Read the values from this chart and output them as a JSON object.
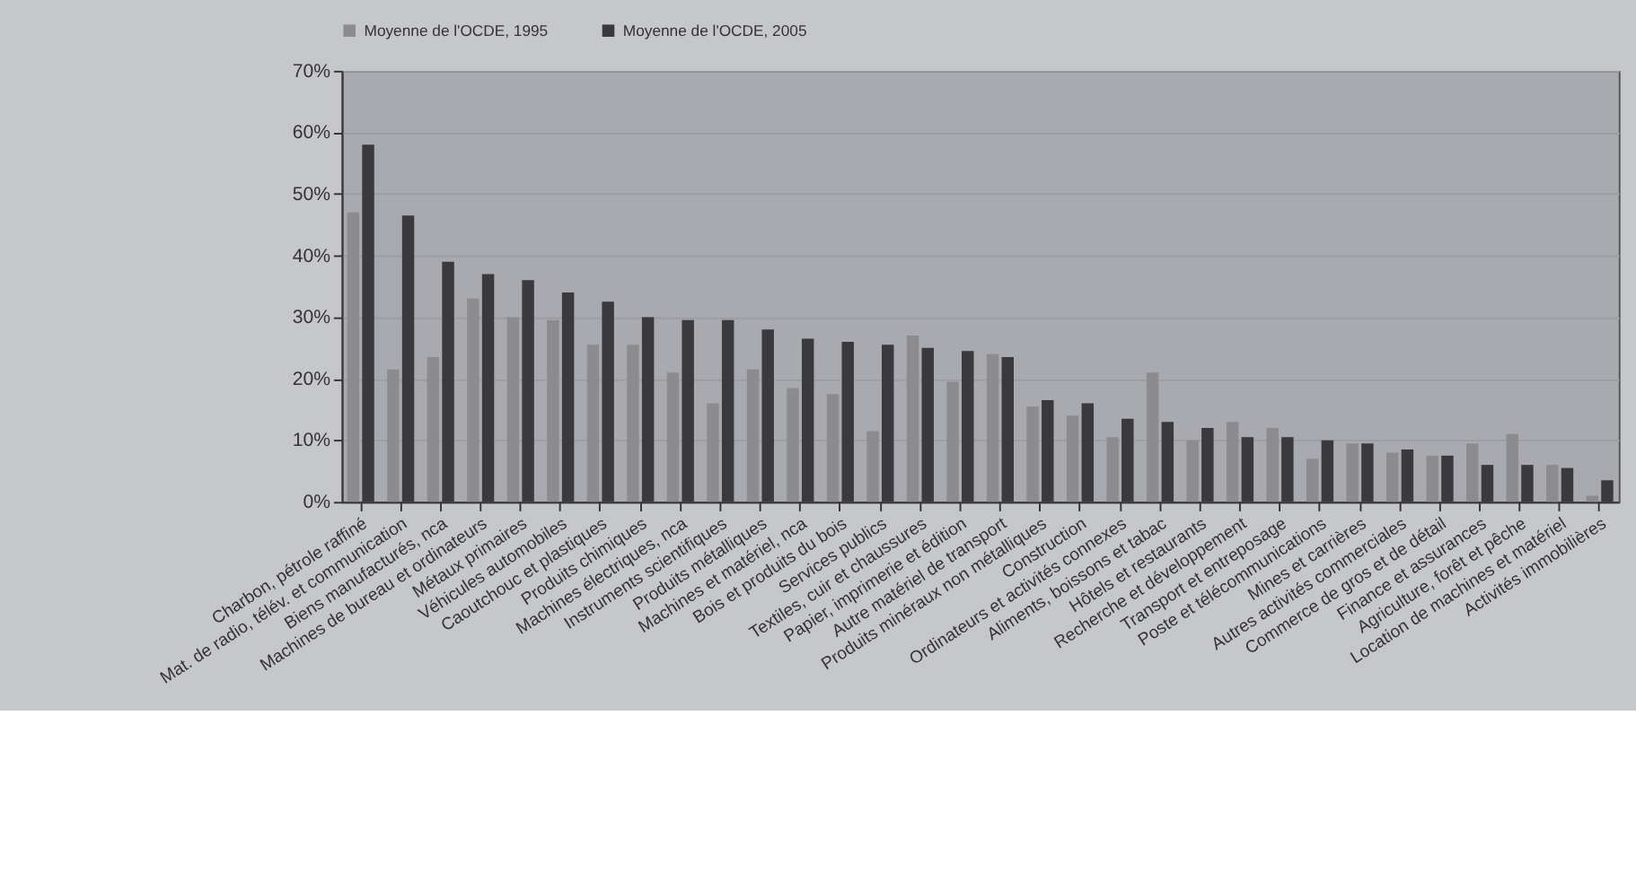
{
  "chart_data": {
    "type": "bar",
    "categories": [
      "Charbon, pétrole raffiné",
      "Mat. de radio, télév. et communication",
      "Biens  manufacturés, nca",
      "Machines de bureau et ordinateurs",
      "Métaux  primaires",
      "Véhicules automobiles",
      "Caoutchouc et plastiques",
      "Produits chimiques",
      "Machines électriques, nca",
      "Instruments scientifiques",
      "Produits métalliques",
      "Machines et matériel, nca",
      "Bois et produits du bois",
      "Services  publics",
      "Textiles, cuir et chaussures",
      "Papier, imprimerie et  édition",
      "Autre matériel de transport",
      "Produits minéraux non métalliques",
      "Construction",
      "Ordinateurs et activités connexes",
      "Aliments, boissons et tabac",
      "Hôtels et restaurants",
      "Recherche et développement",
      "Transport et entreposage",
      "Poste et télécommunications",
      "Mines et carrières",
      "Autres activités commerciales",
      "Commerce de gros et de détail",
      "Finance et assurances",
      "Agriculture, forêt et pêche",
      "Location  de machines et matériel",
      "Activités immobilières"
    ],
    "series": [
      {
        "name": "Moyenne de l'OCDE, 1995",
        "color": "#8c8c8e",
        "values": [
          47,
          21.5,
          23.5,
          33,
          30,
          29.5,
          25.5,
          25.5,
          21,
          16,
          21.5,
          18.5,
          17.5,
          11.5,
          27,
          19.5,
          24,
          15.5,
          14,
          10.5,
          21,
          10,
          13,
          12,
          7,
          9.5,
          8,
          7.5,
          9.5,
          11,
          6,
          1
        ]
      },
      {
        "name": "Moyenne de l'OCDE, 2005",
        "color": "#3a3a3c",
        "values": [
          58,
          46.5,
          39,
          37,
          36,
          34,
          32.5,
          30,
          29.5,
          29.5,
          28,
          26.5,
          26,
          25.5,
          25,
          24.5,
          23.5,
          16.5,
          16,
          13.5,
          13,
          12,
          10.5,
          10.5,
          10,
          9.5,
          8.5,
          7.5,
          6,
          6,
          5.5,
          3.5
        ]
      }
    ],
    "ylim": [
      0,
      70
    ],
    "yticks": [
      {
        "value": 0,
        "label": "0%"
      },
      {
        "value": 10,
        "label": "10%"
      },
      {
        "value": 20,
        "label": "20%"
      },
      {
        "value": 30,
        "label": "30%"
      },
      {
        "value": 40,
        "label": "40%"
      },
      {
        "value": 50,
        "label": "50%"
      },
      {
        "value": 60,
        "label": "60%"
      },
      {
        "value": 70,
        "label": "70%"
      }
    ],
    "grid": "y",
    "legend": "top"
  }
}
